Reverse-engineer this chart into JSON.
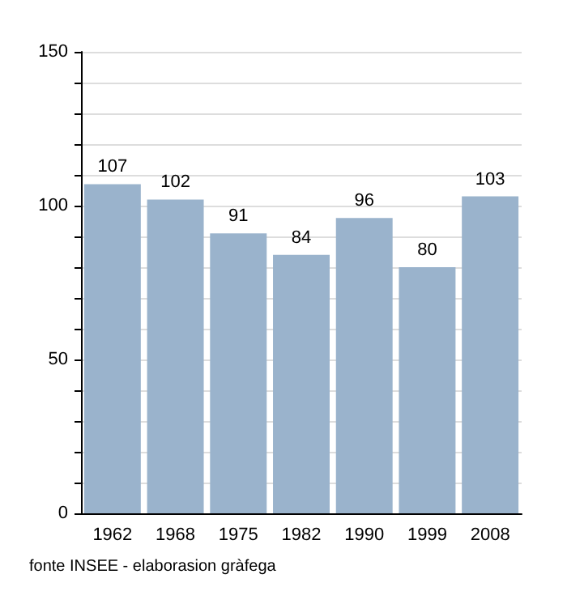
{
  "chart_data": {
    "type": "bar",
    "categories": [
      "1962",
      "1968",
      "1975",
      "1982",
      "1990",
      "1999",
      "2008"
    ],
    "values": [
      107,
      102,
      91,
      84,
      96,
      80,
      103
    ],
    "color": "#9ab3cc",
    "data_labels": true,
    "ylim": [
      0,
      150
    ],
    "yticks": [
      0,
      {
        "value": 10,
        "label": null
      },
      {
        "value": 20,
        "label": null
      },
      {
        "value": 30,
        "label": null
      },
      {
        "value": 40,
        "label": null
      },
      50,
      {
        "value": 60,
        "label": null
      },
      {
        "value": 70,
        "label": null
      },
      {
        "value": 80,
        "label": null
      },
      {
        "value": 90,
        "label": null
      },
      100,
      {
        "value": 110,
        "label": null
      },
      {
        "value": 120,
        "label": null
      },
      {
        "value": 130,
        "label": null
      },
      {
        "value": 140,
        "label": null
      },
      150
    ],
    "grid": "y",
    "annotations": [
      "fonte INSEE - elaborasion gràfega"
    ]
  }
}
